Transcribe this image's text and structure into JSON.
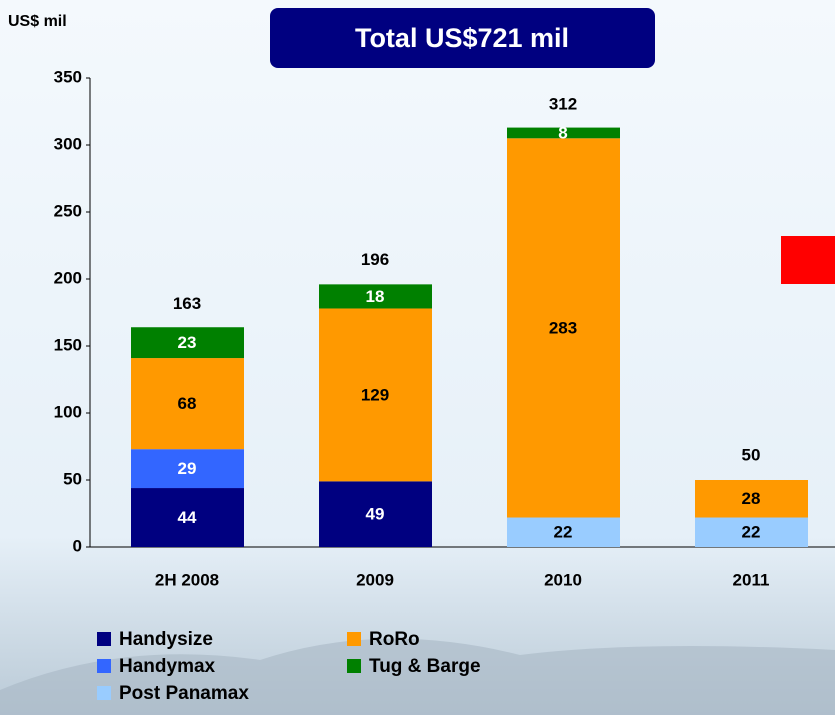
{
  "chart_data": {
    "type": "stacked_bar",
    "title": "Total US$721 mil",
    "y_label": "US$ mil",
    "categories": [
      "2H 2008",
      "2009",
      "2010",
      "2011"
    ],
    "series": [
      {
        "name": "Handysize",
        "color": "#000080",
        "values": [
          44,
          49,
          null,
          null
        ]
      },
      {
        "name": "Handymax",
        "color": "#3366ff",
        "values": [
          29,
          null,
          null,
          null
        ]
      },
      {
        "name": "Post Panamax",
        "color": "#99ccff",
        "values": [
          null,
          null,
          22,
          22
        ]
      },
      {
        "name": "RoRo",
        "color": "#ff9900",
        "values": [
          68,
          129,
          283,
          28
        ]
      },
      {
        "name": "Tug & Barge",
        "color": "#008000",
        "values": [
          23,
          18,
          8,
          null
        ]
      }
    ],
    "totals": [
      163,
      196,
      312,
      50
    ],
    "ylim": [
      0,
      350
    ],
    "yticks": [
      0,
      50,
      100,
      150,
      200,
      250,
      300,
      350
    ]
  }
}
